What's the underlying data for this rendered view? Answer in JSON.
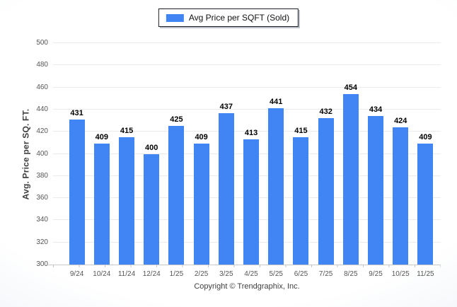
{
  "legend": {
    "label": "Avg Price per SQFT (Sold)",
    "swatch_color": "#4184f3"
  },
  "footer": {
    "copyright": "Copyright © Trendgraphix, Inc."
  },
  "chart_data": {
    "type": "bar",
    "categories": [
      "9/24",
      "10/24",
      "11/24",
      "12/24",
      "1/25",
      "2/25",
      "3/25",
      "4/25",
      "5/25",
      "6/25",
      "7/25",
      "8/25",
      "9/25",
      "10/25",
      "11/25"
    ],
    "values": [
      431,
      409,
      415,
      400,
      425,
      409,
      437,
      413,
      441,
      415,
      432,
      454,
      434,
      424,
      409
    ],
    "series_name": "Avg Price per SQFT (Sold)",
    "title": "",
    "xlabel": "",
    "ylabel": "Avg. Price per SQ. FT.",
    "ylim": [
      300,
      500
    ],
    "ytick_step": 20,
    "yticks": [
      300,
      320,
      340,
      360,
      380,
      400,
      420,
      440,
      460,
      480,
      500
    ],
    "grid": true,
    "legend_position": "top-center",
    "bar_color": "#4184f3",
    "value_labels_shown": true
  }
}
